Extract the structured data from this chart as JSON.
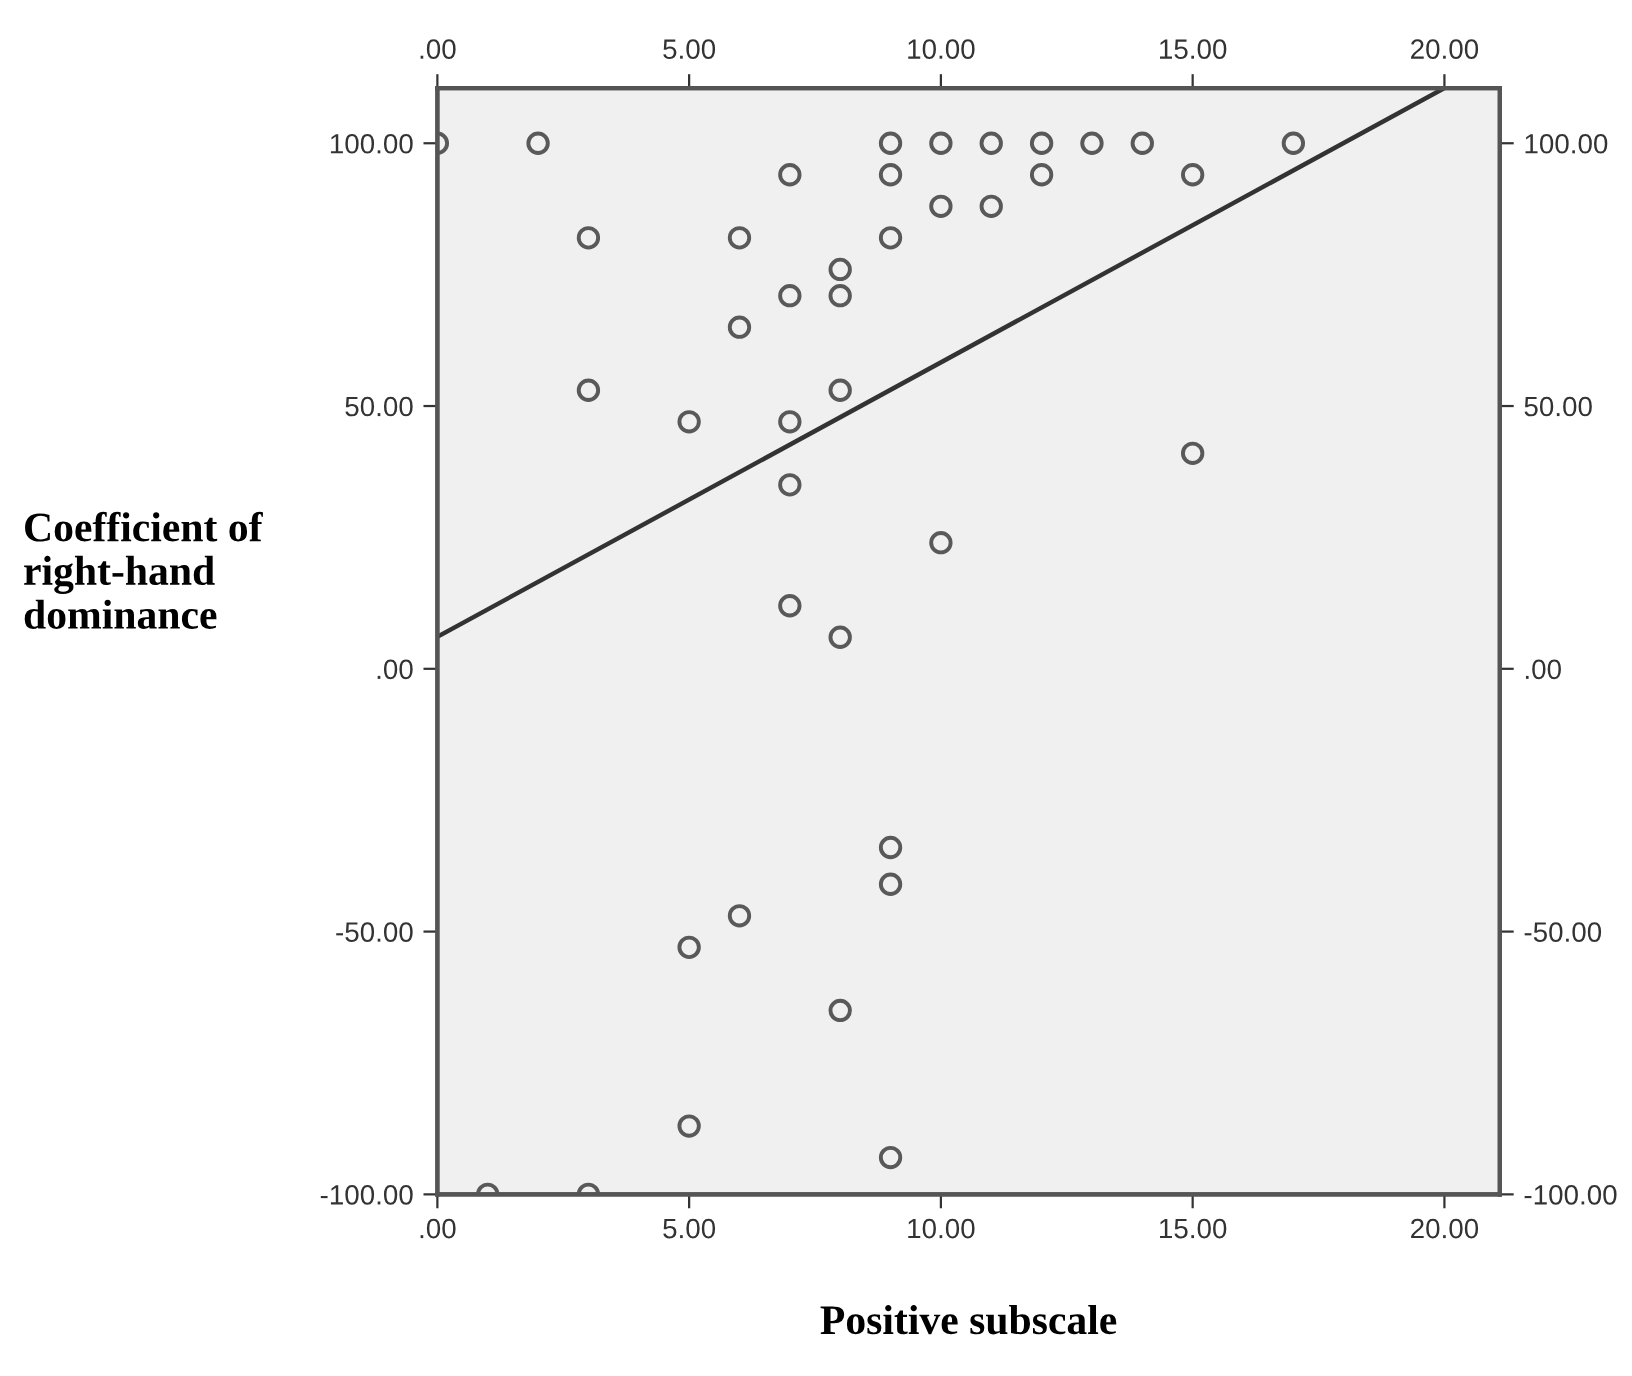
{
  "chart_data": {
    "type": "scatter",
    "xlabel": "Positive subscale",
    "ylabel": "Coefficient of\nright-hand\ndominance",
    "xlim": [
      0,
      21.1
    ],
    "ylim": [
      -100,
      110.5
    ],
    "xticks": [
      {
        "value": 0,
        "label": ".00"
      },
      {
        "value": 5,
        "label": "5.00"
      },
      {
        "value": 10,
        "label": "10.00"
      },
      {
        "value": 15,
        "label": "15.00"
      },
      {
        "value": 20,
        "label": "20.00"
      }
    ],
    "yticks": [
      {
        "value": -100,
        "label": "-100.00"
      },
      {
        "value": -50,
        "label": "-50.00"
      },
      {
        "value": 0,
        "label": ".00"
      },
      {
        "value": 50,
        "label": "50.00"
      },
      {
        "value": 100,
        "label": "100.00"
      }
    ],
    "x2lim": [
      0,
      21.1
    ],
    "x2ticks": [
      {
        "value": 0,
        "label": ".00"
      },
      {
        "value": 5,
        "label": "5.00"
      },
      {
        "value": 10,
        "label": "10.00"
      },
      {
        "value": 15,
        "label": "15.00"
      },
      {
        "value": 20,
        "label": "20.00"
      }
    ],
    "y2lim": [
      -100,
      110.5
    ],
    "y2ticks": [
      {
        "value": -100,
        "label": "-100.00"
      },
      {
        "value": -50,
        "label": "-50.00"
      },
      {
        "value": 0,
        "label": ".00"
      },
      {
        "value": 50,
        "label": "50.00"
      },
      {
        "value": 100,
        "label": "100.00"
      }
    ],
    "grid": false,
    "legend": false,
    "marker": "circle",
    "series": [
      {
        "type": "scatter",
        "color": "#595959",
        "x": [
          0,
          2,
          3,
          6,
          7,
          9,
          9,
          10,
          10,
          11,
          11,
          9,
          8,
          7,
          8,
          6,
          3,
          8,
          5,
          7,
          12,
          13,
          14,
          17,
          12,
          15,
          15,
          7,
          10,
          7,
          8,
          9,
          9,
          6,
          5,
          8,
          5,
          9,
          1,
          3
        ],
        "values": [
          100,
          100,
          82,
          82,
          94,
          100,
          94,
          100,
          88,
          100,
          88,
          82,
          76,
          71,
          71,
          65,
          53,
          53,
          47,
          47,
          100,
          100,
          100,
          100,
          94,
          94,
          41,
          35,
          24,
          12,
          6,
          -34,
          -41,
          -47,
          -53,
          -65,
          -87,
          -93,
          -100,
          -100
        ]
      },
      {
        "type": "line",
        "color": "#333333",
        "marker": "none",
        "x": [
          0,
          20
        ],
        "values": [
          6.1,
          110.5
        ]
      }
    ]
  }
}
